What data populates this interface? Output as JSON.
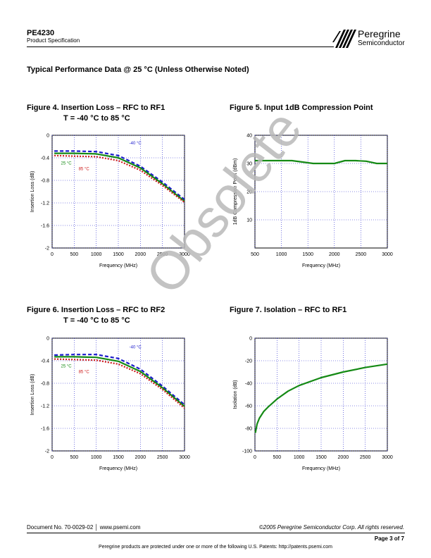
{
  "header": {
    "doc_id": "PE4230",
    "doc_type": "Product Specification",
    "logo_name": "Peregrine",
    "logo_sub": "Semiconductor"
  },
  "section_title": "Typical Performance Data @ 25 °C (Unless Otherwise Noted)",
  "watermark": "Obsolete",
  "figures": [
    {
      "title": "Figure 4.  Insertion Loss – RFC to RF1",
      "subtitle": "T = -40 °C to 85 °C"
    },
    {
      "title": "Figure 5. Input 1dB Compression Point",
      "subtitle": ""
    },
    {
      "title": "Figure 6.  Insertion Loss – RFC to RF2",
      "subtitle": "T = -40 °C to 85 °C"
    },
    {
      "title": "Figure 7.  Isolation – RFC to RF1",
      "subtitle": ""
    }
  ],
  "chart_data": [
    {
      "type": "line",
      "xlabel": "Frequency (MHz)",
      "ylabel": "Insertion Loss (dB)",
      "xlim": [
        0,
        3000
      ],
      "ylim": [
        -2,
        0
      ],
      "xticks": [
        0,
        500,
        1000,
        1500,
        2000,
        2500,
        3000
      ],
      "yticks": [
        0,
        -0.4,
        -0.8,
        -1.2,
        -1.6,
        -2
      ],
      "ytick_labels": [
        "0",
        "-0.4",
        "-0.8",
        "-1.2",
        "-1.6",
        "-2"
      ],
      "grid": true,
      "series": [
        {
          "name": "-40 °C",
          "color": "#1a1acc",
          "dash": "5,3",
          "x": [
            50,
            500,
            1000,
            1500,
            2000,
            2500,
            3000
          ],
          "y": [
            -0.28,
            -0.28,
            -0.29,
            -0.36,
            -0.55,
            -0.83,
            -1.14
          ]
        },
        {
          "name": "25 °C",
          "color": "#158a15",
          "dash": "",
          "x": [
            50,
            500,
            1000,
            1500,
            2000,
            2500,
            3000
          ],
          "y": [
            -0.32,
            -0.32,
            -0.33,
            -0.4,
            -0.58,
            -0.86,
            -1.17
          ]
        },
        {
          "name": "85 °C",
          "color": "#cc1a1a",
          "dash": "2,2",
          "x": [
            50,
            500,
            1000,
            1500,
            2000,
            2500,
            3000
          ],
          "y": [
            -0.36,
            -0.37,
            -0.38,
            -0.45,
            -0.62,
            -0.89,
            -1.19
          ]
        }
      ],
      "annotations": [
        {
          "text": "-40 °C",
          "x": 1750,
          "y": -0.16,
          "color": "#1a1acc"
        },
        {
          "text": "25 °C",
          "x": 200,
          "y": -0.52,
          "color": "#158a15"
        },
        {
          "text": "85 °C",
          "x": 600,
          "y": -0.62,
          "color": "#cc1a1a"
        }
      ]
    },
    {
      "type": "line",
      "xlabel": "Frequency (MHz)",
      "ylabel": "1dB Compression Point (dBm)",
      "xlim": [
        500,
        3000
      ],
      "ylim": [
        0,
        40
      ],
      "xticks": [
        500,
        1000,
        1500,
        2000,
        2500,
        3000
      ],
      "yticks": [
        10,
        20,
        30,
        40
      ],
      "ytick_labels": [
        "10",
        "20",
        "30",
        "40"
      ],
      "grid": true,
      "series": [
        {
          "name": "",
          "color": "#158a15",
          "dash": "",
          "x": [
            500,
            1000,
            1200,
            1400,
            1600,
            1800,
            2000,
            2200,
            2400,
            2600,
            2800,
            3000
          ],
          "y": [
            31,
            31,
            31,
            30.5,
            30,
            30,
            30,
            31,
            31,
            30.8,
            30,
            30
          ]
        }
      ],
      "annotations": []
    },
    {
      "type": "line",
      "xlabel": "Frequency (MHz)",
      "ylabel": "Insertion Loss (dB)",
      "xlim": [
        0,
        3000
      ],
      "ylim": [
        -2,
        0
      ],
      "xticks": [
        0,
        500,
        1000,
        1500,
        2000,
        2500,
        3000
      ],
      "yticks": [
        0,
        -0.4,
        -0.8,
        -1.2,
        -1.6,
        -2
      ],
      "ytick_labels": [
        "0",
        "-0.4",
        "-0.8",
        "-1.2",
        "-1.6",
        "-2"
      ],
      "grid": true,
      "series": [
        {
          "name": "-40 °C",
          "color": "#1a1acc",
          "dash": "5,3",
          "x": [
            50,
            500,
            1000,
            1500,
            2000,
            2500,
            3000
          ],
          "y": [
            -0.3,
            -0.29,
            -0.29,
            -0.36,
            -0.55,
            -0.85,
            -1.18
          ]
        },
        {
          "name": "25 °C",
          "color": "#158a15",
          "dash": "",
          "x": [
            50,
            500,
            1000,
            1500,
            2000,
            2500,
            3000
          ],
          "y": [
            -0.33,
            -0.33,
            -0.34,
            -0.41,
            -0.59,
            -0.88,
            -1.21
          ]
        },
        {
          "name": "85 °C",
          "color": "#cc1a1a",
          "dash": "2,2",
          "x": [
            50,
            500,
            1000,
            1500,
            2000,
            2500,
            3000
          ],
          "y": [
            -0.37,
            -0.38,
            -0.39,
            -0.46,
            -0.63,
            -0.91,
            -1.24
          ]
        }
      ],
      "annotations": [
        {
          "text": "-40 °C",
          "x": 1750,
          "y": -0.18,
          "color": "#1a1acc"
        },
        {
          "text": "25 °C",
          "x": 200,
          "y": -0.52,
          "color": "#158a15"
        },
        {
          "text": "85 °C",
          "x": 600,
          "y": -0.62,
          "color": "#cc1a1a"
        }
      ]
    },
    {
      "type": "line",
      "xlabel": "Frequency (MHz)",
      "ylabel": "Isolation (dB)",
      "xlim": [
        0,
        3000
      ],
      "ylim": [
        -100,
        0
      ],
      "xticks": [
        0,
        500,
        1000,
        1500,
        2000,
        2500,
        3000
      ],
      "yticks": [
        0,
        -20,
        -40,
        -60,
        -80,
        -100
      ],
      "ytick_labels": [
        "0",
        "-20",
        "-40",
        "-60",
        "-80",
        "-100"
      ],
      "grid": true,
      "series": [
        {
          "name": "",
          "color": "#158a15",
          "dash": "",
          "x": [
            10,
            50,
            100,
            200,
            300,
            500,
            750,
            1000,
            1500,
            2000,
            2500,
            3000
          ],
          "y": [
            -84,
            -76,
            -71,
            -65,
            -61,
            -54,
            -47,
            -42,
            -35,
            -30,
            -26,
            -23
          ]
        }
      ],
      "annotations": []
    }
  ],
  "footer": {
    "doc_number": "Document No. 70-0029-02  │ www.psemi.com",
    "copyright": "©2005 Peregrine Semiconductor Corp.  All rights reserved.",
    "page": "Page  3 of 7",
    "patents": "Peregrine products are protected under one or more of the following U.S. Patents:  http://patents.psemi.com"
  }
}
